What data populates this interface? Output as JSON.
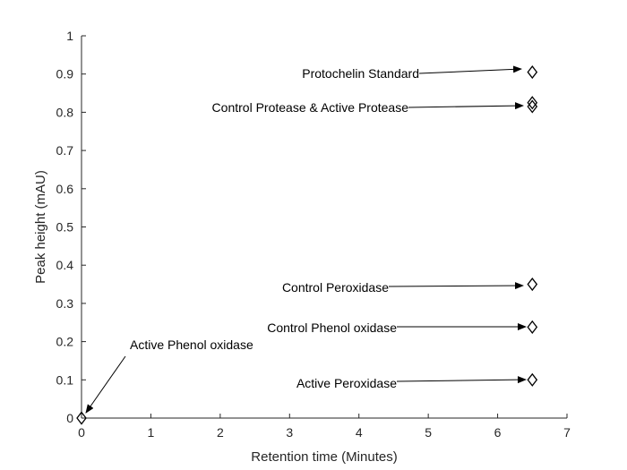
{
  "chart_data": {
    "type": "scatter",
    "title": "",
    "xlabel": "Retention time (Minutes)",
    "ylabel": "Peak height (mAU)",
    "xlim": [
      0,
      7
    ],
    "ylim": [
      0,
      1
    ],
    "grid": false,
    "x_ticks": [
      "0",
      "1",
      "2",
      "3",
      "4",
      "5",
      "6",
      "7"
    ],
    "y_ticks": [
      "0",
      "0.1",
      "0.2",
      "0.3",
      "0.4",
      "0.5",
      "0.6",
      "0.7",
      "0.8",
      "0.9",
      "1"
    ],
    "marker": "diamond",
    "colors": {
      "axis": "#262626",
      "marker": "#000000",
      "arrow": "#000000"
    },
    "points": [
      {
        "x": 6.5,
        "y": 0.905
      },
      {
        "x": 6.5,
        "y": 0.825
      },
      {
        "x": 6.5,
        "y": 0.815
      },
      {
        "x": 6.5,
        "y": 0.35
      },
      {
        "x": 6.5,
        "y": 0.238
      },
      {
        "x": 6.5,
        "y": 0.1
      },
      {
        "x": 0.0,
        "y": 0.0
      }
    ],
    "annotations": [
      {
        "text": "Protochelin Standard",
        "x": 6.5,
        "y": 0.905
      },
      {
        "text": "Control Protease & Active Protease",
        "x": 6.5,
        "y": 0.82
      },
      {
        "text": "Control Peroxidase",
        "x": 6.5,
        "y": 0.35
      },
      {
        "text": "Control Phenol oxidase",
        "x": 6.5,
        "y": 0.238
      },
      {
        "text": "Active Peroxidase",
        "x": 6.5,
        "y": 0.1
      },
      {
        "text": "Active Phenol oxidase",
        "x": 0.0,
        "y": 0.0
      }
    ]
  }
}
